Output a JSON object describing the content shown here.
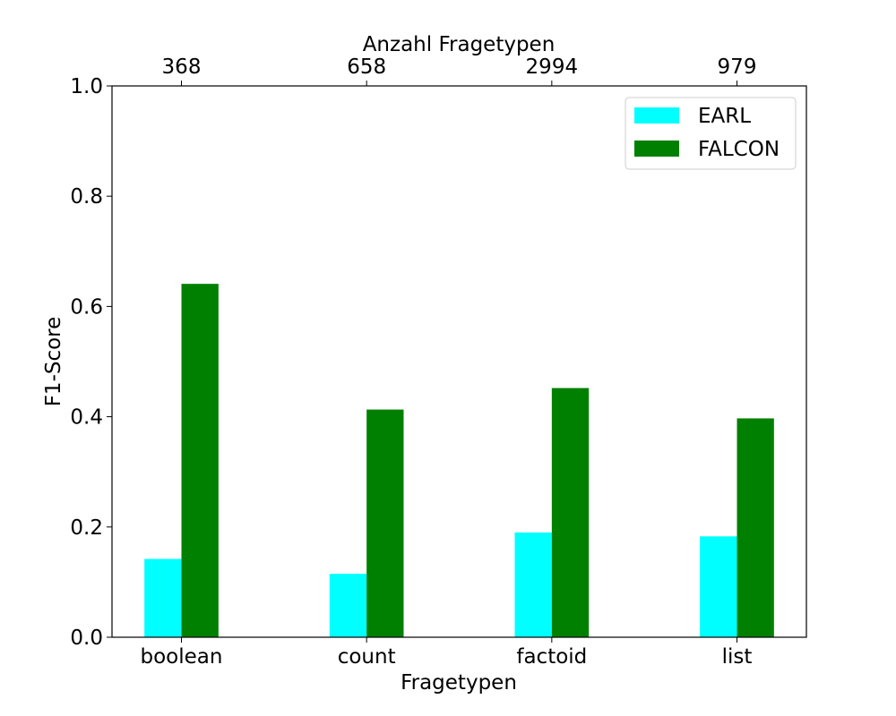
{
  "chart_data": {
    "type": "bar",
    "categories": [
      "boolean",
      "count",
      "factoid",
      "list"
    ],
    "top_axis_label": "Anzahl Fragetypen",
    "top_tick_labels": [
      "368",
      "658",
      "2994",
      "979"
    ],
    "xlabel": "Fragetypen",
    "ylabel": "F1-Score",
    "ylim": [
      0,
      1.0
    ],
    "yticks": [
      "0.0",
      "0.2",
      "0.4",
      "0.6",
      "0.8",
      "1.0"
    ],
    "grid": false,
    "legend_position": "top-right",
    "series": [
      {
        "name": "EARL",
        "color": "#00ffff",
        "values": [
          0.142,
          0.115,
          0.19,
          0.183
        ]
      },
      {
        "name": "FALCON",
        "color": "#008000",
        "values": [
          0.641,
          0.413,
          0.452,
          0.397
        ]
      }
    ]
  }
}
